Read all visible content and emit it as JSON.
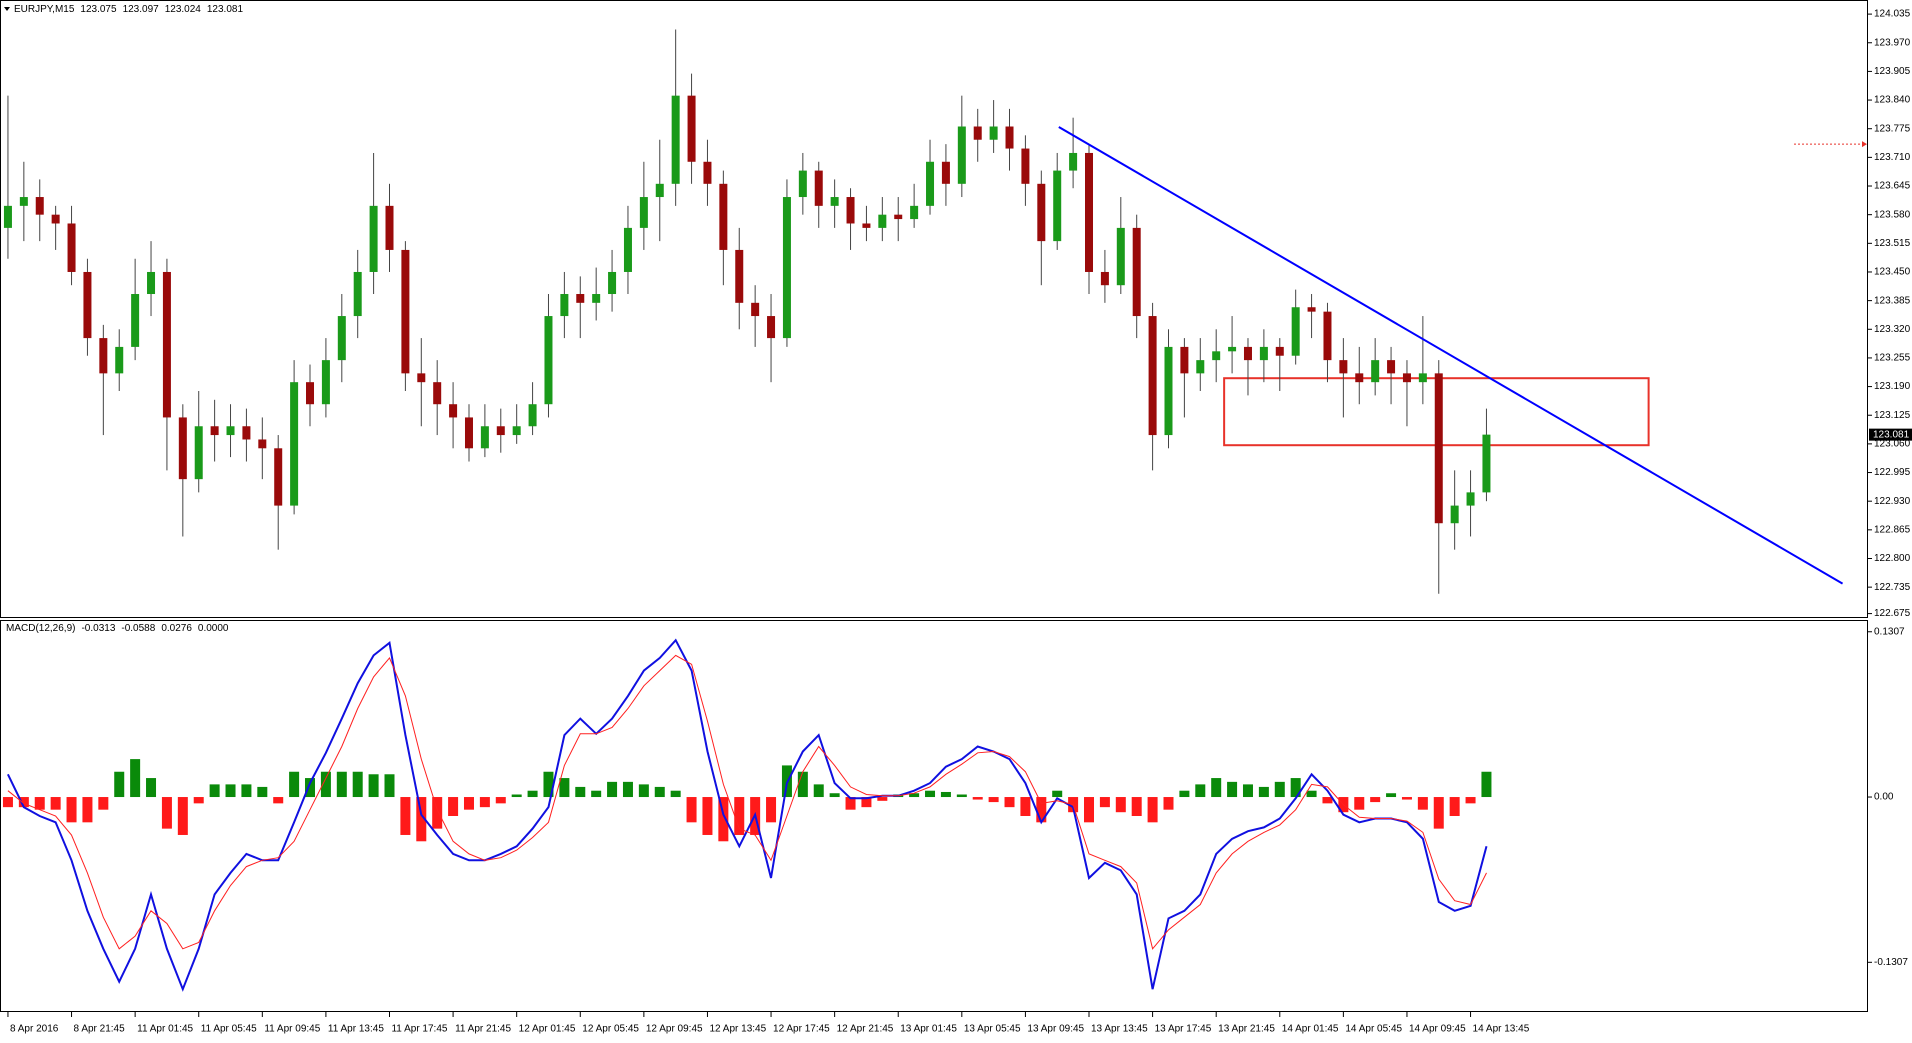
{
  "chart_data": [
    {
      "type": "candlestick",
      "symbol": "EURJPY,M15",
      "ohlc": [
        123.075,
        123.097,
        123.024,
        123.081
      ],
      "up_color": "#1a9a1a",
      "down_color": "#9a0a0a",
      "wick_color": "#444444",
      "xlim": [
        -0.5,
        117
      ],
      "ylim": [
        122.665,
        124.067
      ],
      "yticks": [
        124.035,
        {
          "value": 123.97,
          "label": "123.970"
        },
        123.905,
        {
          "value": 123.84,
          "label": "123.840"
        },
        123.775,
        {
          "value": 123.71,
          "label": "123.710"
        },
        123.645,
        {
          "value": 123.58,
          "label": "123.580"
        },
        123.515,
        {
          "value": 123.45,
          "label": "123.450"
        },
        123.385,
        {
          "value": 123.32,
          "label": "123.320"
        },
        123.255,
        {
          "value": 123.19,
          "label": "123.190"
        },
        123.125,
        {
          "value": 123.06,
          "label": "123.060"
        },
        122.995,
        {
          "value": 122.93,
          "label": "122.930"
        },
        122.865,
        {
          "value": 122.8,
          "label": "122.800"
        },
        122.735,
        122.675
      ],
      "last_price": 123.081,
      "open": [
        123.55,
        123.6,
        123.62,
        123.58,
        123.56,
        123.45,
        123.3,
        123.22,
        123.28,
        123.4,
        123.45,
        123.12,
        122.98,
        123.1,
        123.08,
        123.1,
        123.07,
        123.05,
        122.92,
        123.2,
        123.15,
        123.25,
        123.35,
        123.45,
        123.6,
        123.5,
        123.22,
        123.2,
        123.15,
        123.12,
        123.05,
        123.1,
        123.08,
        123.1,
        123.15,
        123.35,
        123.4,
        123.38,
        123.4,
        123.45,
        123.55,
        123.62,
        123.65,
        123.85,
        123.7,
        123.65,
        123.5,
        123.38,
        123.35,
        123.3,
        123.62,
        123.68,
        123.6,
        123.62,
        123.56,
        123.55,
        123.58,
        123.57,
        123.6,
        123.7,
        123.65,
        123.78,
        123.75,
        123.78,
        123.73,
        123.65,
        123.52,
        123.68,
        123.72,
        123.45,
        123.42,
        123.55,
        123.35,
        123.08,
        123.28,
        123.22,
        123.25,
        123.27,
        123.28,
        123.25,
        123.28,
        123.26,
        123.37,
        123.36,
        123.25,
        123.22,
        123.2,
        123.25,
        123.22,
        123.2,
        123.22,
        122.88,
        122.92,
        122.95
      ],
      "high": [
        123.85,
        123.7,
        123.66,
        123.6,
        123.6,
        123.48,
        123.33,
        123.32,
        123.48,
        123.52,
        123.48,
        123.15,
        123.18,
        123.16,
        123.15,
        123.14,
        123.12,
        123.08,
        123.25,
        123.24,
        123.3,
        123.4,
        123.5,
        123.72,
        123.65,
        123.52,
        123.3,
        123.25,
        123.2,
        123.15,
        123.15,
        123.14,
        123.15,
        123.2,
        123.4,
        123.45,
        123.44,
        123.46,
        123.5,
        123.6,
        123.7,
        123.75,
        124.0,
        123.9,
        123.75,
        123.68,
        123.55,
        123.42,
        123.4,
        123.66,
        123.72,
        123.7,
        123.66,
        123.64,
        123.6,
        123.62,
        123.62,
        123.65,
        123.75,
        123.74,
        123.85,
        123.82,
        123.84,
        123.82,
        123.76,
        123.68,
        123.72,
        123.8,
        123.74,
        123.5,
        123.62,
        123.58,
        123.38,
        123.32,
        123.3,
        123.3,
        123.32,
        123.35,
        123.3,
        123.32,
        123.3,
        123.41,
        123.4,
        123.38,
        123.3,
        123.28,
        123.3,
        123.28,
        123.25,
        123.35,
        123.25,
        123.0,
        123.0,
        123.14
      ],
      "low": [
        123.48,
        123.52,
        123.52,
        123.5,
        123.42,
        123.26,
        123.08,
        123.18,
        123.25,
        123.35,
        123.0,
        122.85,
        122.95,
        123.02,
        123.03,
        123.02,
        122.98,
        122.82,
        122.9,
        123.1,
        123.12,
        123.2,
        123.3,
        123.4,
        123.45,
        123.18,
        123.1,
        123.08,
        123.05,
        123.02,
        123.03,
        123.04,
        123.06,
        123.08,
        123.12,
        123.3,
        123.3,
        123.34,
        123.36,
        123.4,
        123.5,
        123.52,
        123.6,
        123.65,
        123.6,
        123.42,
        123.32,
        123.28,
        123.2,
        123.28,
        123.58,
        123.55,
        123.55,
        123.5,
        123.52,
        123.52,
        123.52,
        123.55,
        123.58,
        123.6,
        123.62,
        123.7,
        123.72,
        123.68,
        123.6,
        123.42,
        123.5,
        123.64,
        123.4,
        123.38,
        123.4,
        123.3,
        123.0,
        123.05,
        123.12,
        123.18,
        123.2,
        123.22,
        123.17,
        123.2,
        123.18,
        123.24,
        123.3,
        123.2,
        123.12,
        123.15,
        123.17,
        123.15,
        123.1,
        123.15,
        122.72,
        122.82,
        122.85,
        122.93
      ],
      "close": [
        123.6,
        123.62,
        123.58,
        123.56,
        123.45,
        123.3,
        123.22,
        123.28,
        123.4,
        123.45,
        123.12,
        122.98,
        123.1,
        123.08,
        123.1,
        123.07,
        123.05,
        122.92,
        123.2,
        123.15,
        123.25,
        123.35,
        123.45,
        123.6,
        123.5,
        123.22,
        123.2,
        123.15,
        123.12,
        123.05,
        123.1,
        123.08,
        123.1,
        123.15,
        123.35,
        123.4,
        123.38,
        123.4,
        123.45,
        123.55,
        123.62,
        123.65,
        123.85,
        123.7,
        123.65,
        123.5,
        123.38,
        123.35,
        123.3,
        123.62,
        123.68,
        123.6,
        123.62,
        123.56,
        123.55,
        123.58,
        123.57,
        123.6,
        123.7,
        123.65,
        123.78,
        123.75,
        123.78,
        123.73,
        123.65,
        123.52,
        123.68,
        123.72,
        123.45,
        123.42,
        123.55,
        123.35,
        123.08,
        123.28,
        123.22,
        123.25,
        123.27,
        123.28,
        123.25,
        123.28,
        123.26,
        123.37,
        123.36,
        123.25,
        123.22,
        123.2,
        123.25,
        123.22,
        123.2,
        123.22,
        122.88,
        122.92,
        122.95,
        123.081
      ],
      "trendline": {
        "x": [
          66.1,
          115.4
        ],
        "y": [
          123.779,
          122.743
        ],
        "color": "#0000ff"
      },
      "zone": {
        "x": [
          76.5,
          103.2
        ],
        "y": [
          123.209,
          123.057
        ],
        "color": "#e8322a"
      },
      "alert_level": {
        "value": 123.74,
        "color": "#e8322a"
      }
    },
    {
      "type": "macd",
      "label": "MACD(12,26,9)",
      "readout": [
        -0.0313,
        -0.0588,
        0.0276,
        {
          "value": 0,
          "label": "0.0000"
        }
      ],
      "xlim": [
        -0.5,
        117
      ],
      "ylim": [
        -0.17,
        0.14
      ],
      "yticks": [
        0.1307,
        {
          "value": 0,
          "label": "0.00"
        },
        -0.1307
      ],
      "xticks": [
        {
          "value": 0,
          "label": "8 Apr 2016"
        },
        {
          "value": 4,
          "label": "8 Apr 21:45"
        },
        {
          "value": 8,
          "label": "11 Apr 01:45"
        },
        {
          "value": 12,
          "label": "11 Apr 05:45"
        },
        {
          "value": 16,
          "label": "11 Apr 09:45"
        },
        {
          "value": 20,
          "label": "11 Apr 13:45"
        },
        {
          "value": 24,
          "label": "11 Apr 17:45"
        },
        {
          "value": 28,
          "label": "11 Apr 21:45"
        },
        {
          "value": 32,
          "label": "12 Apr 01:45"
        },
        {
          "value": 36,
          "label": "12 Apr 05:45"
        },
        {
          "value": 40,
          "label": "12 Apr 09:45"
        },
        {
          "value": 44,
          "label": "12 Apr 13:45"
        },
        {
          "value": 48,
          "label": "12 Apr 17:45"
        },
        {
          "value": 52,
          "label": "12 Apr 21:45"
        },
        {
          "value": 56,
          "label": "13 Apr 01:45"
        },
        {
          "value": 60,
          "label": "13 Apr 05:45"
        },
        {
          "value": 64,
          "label": "13 Apr 09:45"
        },
        {
          "value": 68,
          "label": "13 Apr 13:45"
        },
        {
          "value": 72,
          "label": "13 Apr 17:45"
        },
        {
          "value": 76,
          "label": "13 Apr 21:45"
        },
        {
          "value": 80,
          "label": "14 Apr 01:45"
        },
        {
          "value": 84,
          "label": "14 Apr 05:45"
        },
        {
          "value": 88,
          "label": "14 Apr 09:45"
        },
        {
          "value": 92,
          "label": "14 Apr 13:45"
        }
      ],
      "histogram": {
        "pos_color": "#0a8a0a",
        "neg_color": "#ff1a1a",
        "values": [
          -0.008,
          -0.008,
          -0.01,
          -0.01,
          -0.02,
          -0.02,
          -0.01,
          0.02,
          0.03,
          0.015,
          -0.025,
          -0.03,
          -0.005,
          0.01,
          0.01,
          0.01,
          0.008,
          -0.005,
          0.02,
          0.015,
          0.02,
          0.02,
          0.02,
          0.018,
          0.018,
          -0.03,
          -0.035,
          -0.025,
          -0.015,
          -0.01,
          -0.008,
          -0.005,
          0.002,
          0.005,
          0.02,
          0.015,
          0.008,
          0.005,
          0.012,
          0.012,
          0.01,
          0.008,
          0.005,
          -0.02,
          -0.03,
          -0.035,
          -0.03,
          -0.03,
          -0.02,
          0.025,
          0.02,
          0.01,
          0.003,
          -0.01,
          -0.008,
          -0.003,
          0.002,
          0.003,
          0.005,
          0.004,
          0.002,
          -0.002,
          -0.004,
          -0.008,
          -0.015,
          -0.02,
          0.005,
          -0.012,
          -0.02,
          -0.008,
          -0.012,
          -0.015,
          -0.02,
          -0.01,
          0.005,
          0.01,
          0.015,
          0.012,
          0.01,
          0.008,
          0.012,
          0.015,
          0.005,
          -0.005,
          -0.012,
          -0.01,
          -0.004,
          0.003,
          -0.002,
          -0.01,
          -0.025,
          -0.015,
          -0.005,
          0.02
        ]
      },
      "series": [
        {
          "color": "#1010e0",
          "width": 2,
          "values": [
            0.018,
            -0.008,
            -0.015,
            -0.02,
            -0.05,
            -0.09,
            -0.12,
            -0.146,
            -0.12,
            -0.077,
            -0.12,
            -0.152,
            -0.12,
            -0.077,
            -0.06,
            -0.045,
            -0.05,
            -0.05,
            -0.02,
            0.011,
            0.035,
            0.062,
            0.09,
            0.112,
            0.122,
            0.049,
            -0.014,
            -0.03,
            -0.045,
            -0.05,
            -0.05,
            -0.045,
            -0.039,
            -0.025,
            -0.008,
            0.049,
            0.062,
            0.05,
            0.062,
            0.08,
            0.1,
            0.11,
            0.124,
            0.1,
            0.036,
            -0.014,
            -0.039,
            -0.014,
            -0.064,
            0.011,
            0.036,
            0.049,
            0.011,
            -0.001,
            -0.001,
            0.001,
            0.001,
            0.005,
            0.011,
            0.024,
            0.03,
            0.04,
            0.036,
            0.03,
            0.011,
            -0.02,
            -0.001,
            -0.008,
            -0.064,
            -0.052,
            -0.058,
            -0.077,
            -0.152,
            -0.096,
            -0.09,
            -0.077,
            -0.045,
            -0.033,
            -0.027,
            -0.024,
            -0.017,
            -0.001,
            0.018,
            0.005,
            -0.014,
            -0.02,
            -0.017,
            -0.017,
            -0.02,
            -0.033,
            -0.083,
            -0.09,
            -0.086,
            -0.039
          ]
        },
        {
          "color": "#ff2020",
          "width": 1,
          "values": [
            0.005,
            -0.005,
            -0.01,
            -0.015,
            -0.03,
            -0.06,
            -0.095,
            -0.12,
            -0.11,
            -0.09,
            -0.1,
            -0.12,
            -0.115,
            -0.09,
            -0.07,
            -0.055,
            -0.05,
            -0.048,
            -0.035,
            -0.01,
            0.015,
            0.04,
            0.07,
            0.095,
            0.11,
            0.08,
            0.03,
            -0.01,
            -0.035,
            -0.045,
            -0.05,
            -0.048,
            -0.042,
            -0.032,
            -0.02,
            0.025,
            0.05,
            0.05,
            0.055,
            0.07,
            0.088,
            0.1,
            0.112,
            0.105,
            0.06,
            0.01,
            -0.025,
            -0.03,
            -0.05,
            -0.015,
            0.02,
            0.04,
            0.025,
            0.008,
            0.002,
            0.001,
            0.001,
            0.003,
            0.008,
            0.018,
            0.026,
            0.035,
            0.036,
            0.032,
            0.02,
            -0.005,
            -0.003,
            -0.006,
            -0.045,
            -0.05,
            -0.055,
            -0.068,
            -0.12,
            -0.105,
            -0.095,
            -0.085,
            -0.06,
            -0.045,
            -0.035,
            -0.028,
            -0.022,
            -0.01,
            0.01,
            0.008,
            -0.006,
            -0.016,
            -0.017,
            -0.017,
            -0.019,
            -0.028,
            -0.065,
            -0.082,
            -0.085,
            -0.06
          ]
        }
      ]
    }
  ]
}
